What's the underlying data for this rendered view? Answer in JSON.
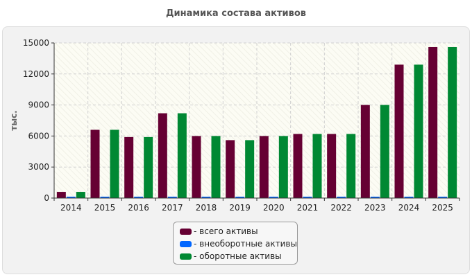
{
  "chart_data": {
    "type": "bar",
    "title": "Динамика состава активов",
    "ylabel": "тыс.",
    "xlabel": "",
    "categories": [
      "2014",
      "2015",
      "2016",
      "2017",
      "2018",
      "2019",
      "2020",
      "2021",
      "2022",
      "2023",
      "2024",
      "2025"
    ],
    "ylim": [
      0,
      15000
    ],
    "yticks": [
      0,
      3000,
      6000,
      9000,
      12000,
      15000
    ],
    "grid": true,
    "legend_position": "bottom-center",
    "series": [
      {
        "name": "- всего активы",
        "color": "#660033",
        "values": [
          600,
          6600,
          5900,
          8200,
          6000,
          5600,
          6000,
          6200,
          6200,
          9000,
          12900,
          14600
        ]
      },
      {
        "name": "- внеоборотные активы",
        "color": "#0066ff",
        "values": [
          0,
          0,
          0,
          0,
          0,
          0,
          0,
          0,
          0,
          0,
          0,
          0
        ]
      },
      {
        "name": "- оборотные активы",
        "color": "#008833",
        "values": [
          600,
          6600,
          5900,
          8200,
          6000,
          5600,
          6000,
          6200,
          6200,
          9000,
          12900,
          14600
        ]
      }
    ]
  }
}
